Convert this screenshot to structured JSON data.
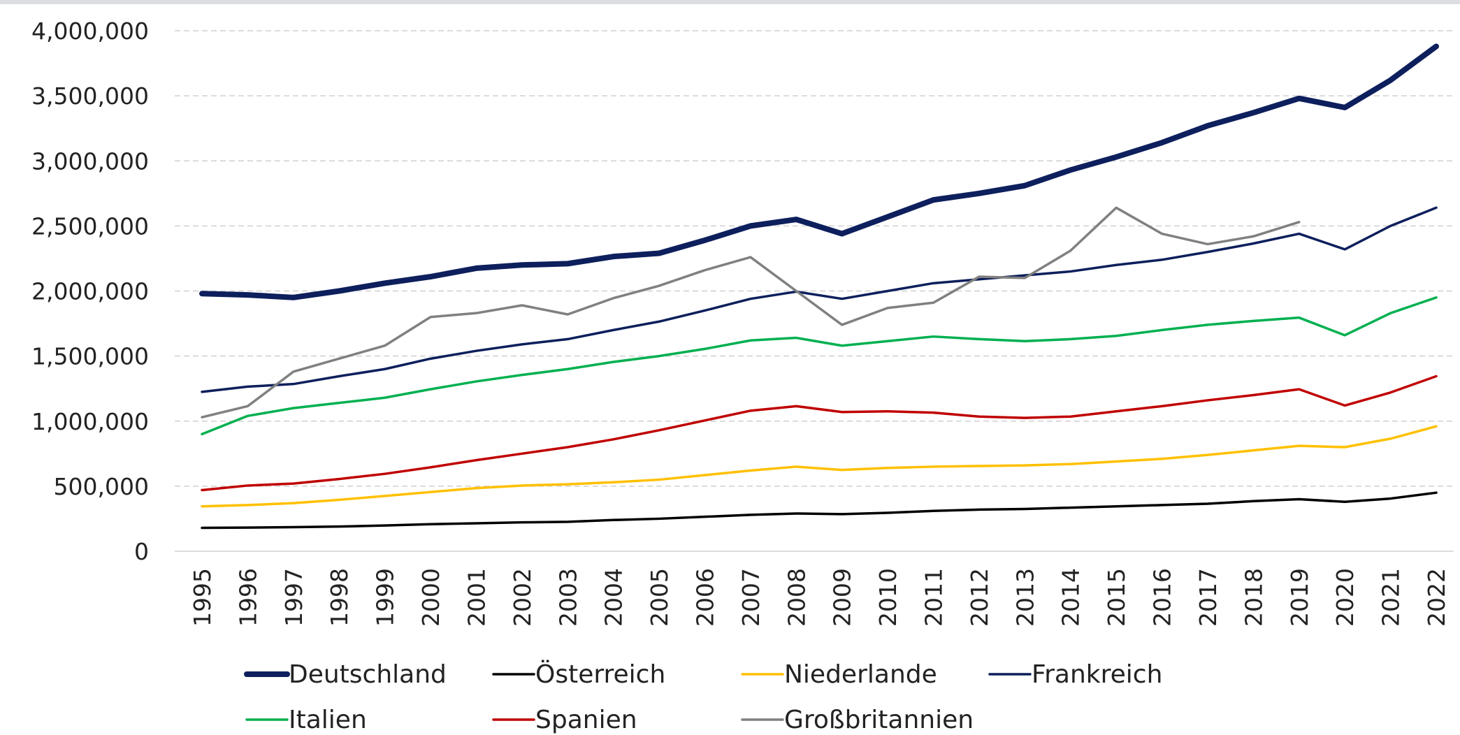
{
  "chart_data": {
    "type": "line",
    "categories": [
      "1995",
      "1996",
      "1997",
      "1998",
      "1999",
      "2000",
      "2001",
      "2002",
      "2003",
      "2004",
      "2005",
      "2006",
      "2007",
      "2008",
      "2009",
      "2010",
      "2011",
      "2012",
      "2013",
      "2014",
      "2015",
      "2016",
      "2017",
      "2018",
      "2019",
      "2020",
      "2021",
      "2022"
    ],
    "series": [
      {
        "name": "Deutschland",
        "color": "#0d1f5c",
        "line_width": 8,
        "values": [
          1980000,
          1970000,
          1950000,
          2000000,
          2060000,
          2110000,
          2175000,
          2200000,
          2210000,
          2265000,
          2290000,
          2390000,
          2500000,
          2550000,
          2440000,
          2570000,
          2700000,
          2750000,
          2810000,
          2930000,
          3030000,
          3140000,
          3270000,
          3370000,
          3480000,
          3410000,
          3620000,
          3880000
        ]
      },
      {
        "name": "Österreich",
        "color": "#000000",
        "line_width": 3.5,
        "values": [
          180000,
          182000,
          185000,
          190000,
          198000,
          208000,
          215000,
          222000,
          226000,
          240000,
          250000,
          265000,
          280000,
          290000,
          285000,
          295000,
          310000,
          320000,
          325000,
          335000,
          345000,
          355000,
          365000,
          385000,
          400000,
          380000,
          405000,
          450000
        ]
      },
      {
        "name": "Niederlande",
        "color": "#ffc000",
        "line_width": 3.5,
        "values": [
          345000,
          355000,
          370000,
          395000,
          425000,
          455000,
          485000,
          505000,
          515000,
          530000,
          550000,
          585000,
          620000,
          650000,
          625000,
          640000,
          650000,
          655000,
          660000,
          670000,
          690000,
          710000,
          740000,
          775000,
          810000,
          800000,
          865000,
          960000
        ]
      },
      {
        "name": "Frankreich",
        "color": "#0d1f5c",
        "line_width": 3.5,
        "values": [
          1225000,
          1265000,
          1285000,
          1345000,
          1400000,
          1480000,
          1540000,
          1590000,
          1630000,
          1700000,
          1765000,
          1850000,
          1940000,
          1995000,
          1940000,
          2000000,
          2060000,
          2090000,
          2120000,
          2150000,
          2200000,
          2240000,
          2300000,
          2365000,
          2440000,
          2320000,
          2500000,
          2640000
        ]
      },
      {
        "name": "Italien",
        "color": "#00b050",
        "line_width": 3.5,
        "values": [
          900000,
          1040000,
          1100000,
          1140000,
          1180000,
          1245000,
          1305000,
          1355000,
          1400000,
          1455000,
          1500000,
          1555000,
          1620000,
          1640000,
          1580000,
          1615000,
          1650000,
          1630000,
          1615000,
          1630000,
          1655000,
          1700000,
          1740000,
          1770000,
          1795000,
          1660000,
          1830000,
          1950000
        ]
      },
      {
        "name": "Spanien",
        "color": "#c00000",
        "line_width": 3.5,
        "values": [
          470000,
          505000,
          520000,
          555000,
          595000,
          645000,
          700000,
          750000,
          800000,
          860000,
          930000,
          1005000,
          1080000,
          1115000,
          1070000,
          1075000,
          1065000,
          1035000,
          1025000,
          1035000,
          1075000,
          1115000,
          1160000,
          1200000,
          1245000,
          1120000,
          1220000,
          1345000
        ]
      },
      {
        "name": "Großbritannien",
        "color": "#808080",
        "line_width": 3.5,
        "values": [
          1030000,
          1115000,
          1380000,
          1480000,
          1580000,
          1800000,
          1830000,
          1890000,
          1820000,
          1945000,
          2040000,
          2160000,
          2260000,
          2000000,
          1740000,
          1870000,
          1910000,
          2110000,
          2100000,
          2310000,
          2640000,
          2440000,
          2360000,
          2420000,
          2530000,
          null,
          null,
          null
        ]
      }
    ],
    "ylim": [
      0,
      4000000
    ],
    "yticks": [
      0,
      {
        "value": 500000,
        "label": "500,000"
      },
      {
        "value": 1000000,
        "label": "1,000,000"
      },
      {
        "value": 1500000,
        "label": "1,500,000"
      },
      {
        "value": 2000000,
        "label": "2,000,000"
      },
      {
        "value": 2500000,
        "label": "2,500,000"
      },
      {
        "value": 3000000,
        "label": "3,000,000"
      },
      {
        "value": 3500000,
        "label": "3,500,000"
      },
      {
        "value": 4000000,
        "label": "4,000,000"
      }
    ],
    "grid": true,
    "legend": "bottom"
  }
}
